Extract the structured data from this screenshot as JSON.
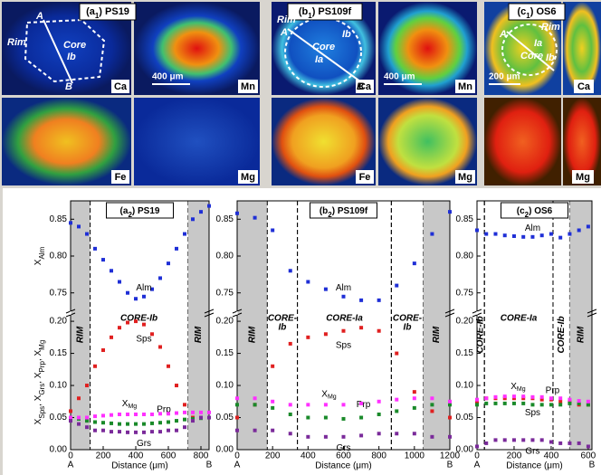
{
  "maps": [
    {
      "title": [
        {
          "t": "(a"
        },
        {
          "s": "1"
        },
        {
          "t": ") PS19"
        }
      ],
      "tiles": [
        "Ca",
        "Mn",
        "Fe",
        "Mg"
      ],
      "labels": [
        "Rim",
        "Core",
        "Ib",
        "A",
        "B"
      ],
      "scale": "400 μm"
    },
    {
      "title": [
        {
          "t": "(b"
        },
        {
          "s": "1"
        },
        {
          "t": ") PS109f"
        }
      ],
      "tiles": [
        "Ca",
        "Mn",
        "Fe",
        "Mg"
      ],
      "labels": [
        "Rim",
        "A",
        "Ib",
        "Core",
        "Ia",
        "B"
      ],
      "scale": "400 μm"
    },
    {
      "title": [
        {
          "t": "(c"
        },
        {
          "s": "1"
        },
        {
          "t": ") OS6"
        }
      ],
      "tiles": [
        "Ca",
        "Mg"
      ],
      "labels": [
        "A",
        "Ia",
        "Rim",
        "Core",
        "Ib"
      ],
      "scale": "200 μm"
    }
  ],
  "chart_data": [
    {
      "type": "scatter",
      "title": [
        {
          "t": "(a"
        },
        {
          "s": "2"
        },
        {
          "t": ") PS19"
        }
      ],
      "y2_label": [
        {
          "t": "X"
        },
        {
          "s": "Alm"
        }
      ],
      "y_label": [
        {
          "t": "X"
        },
        {
          "s": "Sps"
        },
        {
          "t": ", X"
        },
        {
          "s": "Grs"
        },
        {
          "t": ", X"
        },
        {
          "s": "Prp"
        },
        {
          "t": ", X"
        },
        {
          "s": "Mg"
        }
      ],
      "x_label": "Distance (μm)",
      "x_ends": [
        "A",
        "B"
      ],
      "xlim": [
        0,
        850
      ],
      "xticks": [
        0,
        200,
        400,
        600,
        800
      ],
      "ylim": [
        0,
        0.21
      ],
      "yticks": [
        {
          "value": 0,
          "label": "0.00"
        },
        {
          "value": 0.05,
          "label": "0.05"
        },
        {
          "value": 0.1,
          "label": "0.10"
        },
        {
          "value": 0.15,
          "label": "0.15"
        },
        {
          "value": 0.2,
          "label": "0.20"
        }
      ],
      "y2lim": [
        0.73,
        0.87
      ],
      "y2ticks": [
        {
          "value": 0.75,
          "label": "0.75"
        },
        {
          "value": 0.8,
          "label": "0.80"
        },
        {
          "value": 0.85,
          "label": "0.85"
        }
      ],
      "zones": [
        {
          "from": 0,
          "to": 120,
          "label": [
            "RIM"
          ],
          "shaded": true,
          "vertical": true
        },
        {
          "from": 120,
          "to": 720,
          "label": [
            "CORE-Ib"
          ]
        },
        {
          "from": 720,
          "to": 850,
          "label": [
            "RIM"
          ],
          "shaded": true,
          "vertical": true
        }
      ],
      "x": [
        0,
        50,
        100,
        150,
        200,
        250,
        300,
        350,
        400,
        450,
        500,
        550,
        600,
        650,
        700,
        750,
        800,
        850
      ],
      "series": [
        {
          "name": "Alm",
          "color": "#1f2fd6",
          "axis": "y2",
          "values": [
            0.845,
            0.84,
            0.83,
            0.81,
            0.795,
            0.78,
            0.765,
            0.75,
            0.742,
            0.745,
            0.755,
            0.77,
            0.79,
            0.81,
            0.83,
            0.85,
            0.86,
            0.868
          ]
        },
        {
          "name": "Sps",
          "color": "#e02020",
          "values": [
            0.06,
            0.08,
            0.1,
            0.13,
            0.155,
            0.175,
            0.19,
            0.198,
            0.2,
            0.195,
            0.18,
            0.16,
            0.13,
            0.1,
            0.07,
            0.05,
            0.05,
            0.05
          ]
        },
        {
          "name": "Prp",
          "color": "#1a8a2a",
          "values": [
            0.05,
            0.048,
            0.045,
            0.043,
            0.042,
            0.041,
            0.04,
            0.04,
            0.04,
            0.04,
            0.041,
            0.042,
            0.043,
            0.045,
            0.047,
            0.048,
            0.049,
            0.05
          ]
        },
        {
          "name": "X",
          "name_sub": "Mg",
          "color": "#ff30ff",
          "values": [
            0.05,
            0.05,
            0.05,
            0.052,
            0.053,
            0.054,
            0.055,
            0.055,
            0.055,
            0.055,
            0.055,
            0.056,
            0.056,
            0.057,
            0.058,
            0.058,
            0.058,
            0.058
          ]
        },
        {
          "name": "Grs",
          "color": "#7a2a9a",
          "values": [
            0.045,
            0.04,
            0.035,
            0.03,
            0.03,
            0.028,
            0.028,
            0.027,
            0.027,
            0.027,
            0.028,
            0.028,
            0.03,
            0.03,
            0.035,
            0.045,
            0.05,
            0.05
          ]
        }
      ]
    },
    {
      "type": "scatter",
      "title": [
        {
          "t": "(b"
        },
        {
          "s": "2"
        },
        {
          "t": ") PS109f"
        }
      ],
      "x_label": "Distance (μm)",
      "x_ends": [
        "A",
        "B"
      ],
      "xlim": [
        0,
        1200
      ],
      "xticks": [
        0,
        200,
        400,
        600,
        800,
        1000,
        1200
      ],
      "ylim": [
        0,
        0.21
      ],
      "yticks": [
        {
          "value": 0,
          "label": "0.00"
        },
        {
          "value": 0.05,
          "label": "0.05"
        },
        {
          "value": 0.1,
          "label": "0.10"
        },
        {
          "value": 0.15,
          "label": "0.15"
        },
        {
          "value": 0.2,
          "label": "0.20"
        }
      ],
      "y2lim": [
        0.73,
        0.87
      ],
      "y2ticks": [
        {
          "value": 0.75,
          "label": "0.75"
        },
        {
          "value": 0.8,
          "label": "0.80"
        },
        {
          "value": 0.85,
          "label": "0.85"
        }
      ],
      "zones": [
        {
          "from": 0,
          "to": 170,
          "label": [
            "RIM"
          ],
          "shaded": true,
          "vertical": true
        },
        {
          "from": 170,
          "to": 340,
          "label": [
            "CORE-",
            "Ib"
          ]
        },
        {
          "from": 340,
          "to": 870,
          "label": [
            "CORE-Ia"
          ]
        },
        {
          "from": 870,
          "to": 1050,
          "label": [
            "CORE-",
            "Ib"
          ]
        },
        {
          "from": 1050,
          "to": 1200,
          "label": [
            "RIM"
          ],
          "shaded": true,
          "vertical": true
        }
      ],
      "x": [
        0,
        100,
        200,
        300,
        400,
        500,
        600,
        700,
        800,
        900,
        1000,
        1100,
        1200
      ],
      "series": [
        {
          "name": "Alm",
          "color": "#1f2fd6",
          "axis": "y2",
          "values": [
            0.858,
            0.852,
            0.835,
            0.78,
            0.765,
            0.755,
            0.745,
            0.74,
            0.74,
            0.76,
            0.79,
            0.83,
            0.86
          ]
        },
        {
          "name": "Sps",
          "color": "#e02020",
          "values": [
            0.05,
            0.07,
            0.13,
            0.165,
            0.175,
            0.18,
            0.185,
            0.19,
            0.185,
            0.15,
            0.09,
            0.06,
            0.05
          ]
        },
        {
          "name": "Prp",
          "color": "#1a8a2a",
          "values": [
            0.07,
            0.07,
            0.065,
            0.055,
            0.05,
            0.05,
            0.048,
            0.05,
            0.055,
            0.06,
            0.065,
            0.07,
            0.07
          ]
        },
        {
          "name": "X",
          "name_sub": "Mg",
          "color": "#ff30ff",
          "values": [
            0.08,
            0.08,
            0.075,
            0.07,
            0.07,
            0.07,
            0.07,
            0.072,
            0.075,
            0.078,
            0.08,
            0.08,
            0.075
          ]
        },
        {
          "name": "Grs",
          "color": "#7a2a9a",
          "values": [
            0.03,
            0.03,
            0.03,
            0.025,
            0.02,
            0.02,
            0.02,
            0.022,
            0.025,
            0.025,
            0.025,
            0.02,
            0.02
          ]
        }
      ]
    },
    {
      "type": "scatter",
      "title": [
        {
          "t": "(c"
        },
        {
          "s": "2"
        },
        {
          "t": ") OS6"
        }
      ],
      "x_label": "Distance (μm)",
      "x_ends": [
        "A",
        "B"
      ],
      "xlim": [
        0,
        620
      ],
      "xticks": [
        0,
        200,
        400,
        600
      ],
      "ylim": [
        0,
        0.21
      ],
      "yticks": [
        {
          "value": 0,
          "label": "0.00"
        },
        {
          "value": 0.05,
          "label": "0.05"
        },
        {
          "value": 0.1,
          "label": "0.10"
        },
        {
          "value": 0.15,
          "label": "0.15"
        },
        {
          "value": 0.2,
          "label": "0.20"
        }
      ],
      "y2lim": [
        0.73,
        0.87
      ],
      "y2ticks": [
        {
          "value": 0.75,
          "label": "0.75"
        },
        {
          "value": 0.8,
          "label": "0.80"
        },
        {
          "value": 0.85,
          "label": "0.85"
        }
      ],
      "zones": [
        {
          "from": 0,
          "to": 40,
          "label": [
            "CORE-Ib"
          ],
          "vertical": true
        },
        {
          "from": 40,
          "to": 410,
          "label": [
            "CORE-Ia"
          ]
        },
        {
          "from": 410,
          "to": 500,
          "label": [
            "CORE-Ib"
          ],
          "vertical": true
        },
        {
          "from": 500,
          "to": 620,
          "label": [
            "RIM"
          ],
          "shaded": true,
          "vertical": true
        }
      ],
      "x": [
        0,
        50,
        100,
        150,
        200,
        250,
        300,
        350,
        400,
        450,
        500,
        550,
        600
      ],
      "series": [
        {
          "name": "Alm",
          "color": "#1f2fd6",
          "axis": "y2",
          "values": [
            0.835,
            0.83,
            0.83,
            0.828,
            0.827,
            0.826,
            0.826,
            0.828,
            0.83,
            0.825,
            0.83,
            0.835,
            0.84
          ]
        },
        {
          "name": "Sps",
          "color": "#e02020",
          "values": [
            0.075,
            0.08,
            0.08,
            0.08,
            0.08,
            0.08,
            0.08,
            0.078,
            0.078,
            0.075,
            0.075,
            0.07,
            0.07
          ]
        },
        {
          "name": "Prp",
          "color": "#1a8a2a",
          "values": [
            0.07,
            0.072,
            0.072,
            0.072,
            0.072,
            0.072,
            0.07,
            0.07,
            0.07,
            0.07,
            0.072,
            0.072,
            0.07
          ]
        },
        {
          "name": "X",
          "name_sub": "Mg",
          "color": "#ff30ff",
          "values": [
            0.078,
            0.08,
            0.082,
            0.083,
            0.083,
            0.083,
            0.082,
            0.082,
            0.08,
            0.08,
            0.078,
            0.076,
            0.075
          ]
        },
        {
          "name": "Grs",
          "color": "#7a2a9a",
          "values": [
            0.005,
            0.01,
            0.015,
            0.015,
            0.015,
            0.015,
            0.015,
            0.015,
            0.012,
            0.01,
            0.01,
            0.01,
            0.005
          ]
        }
      ]
    }
  ]
}
